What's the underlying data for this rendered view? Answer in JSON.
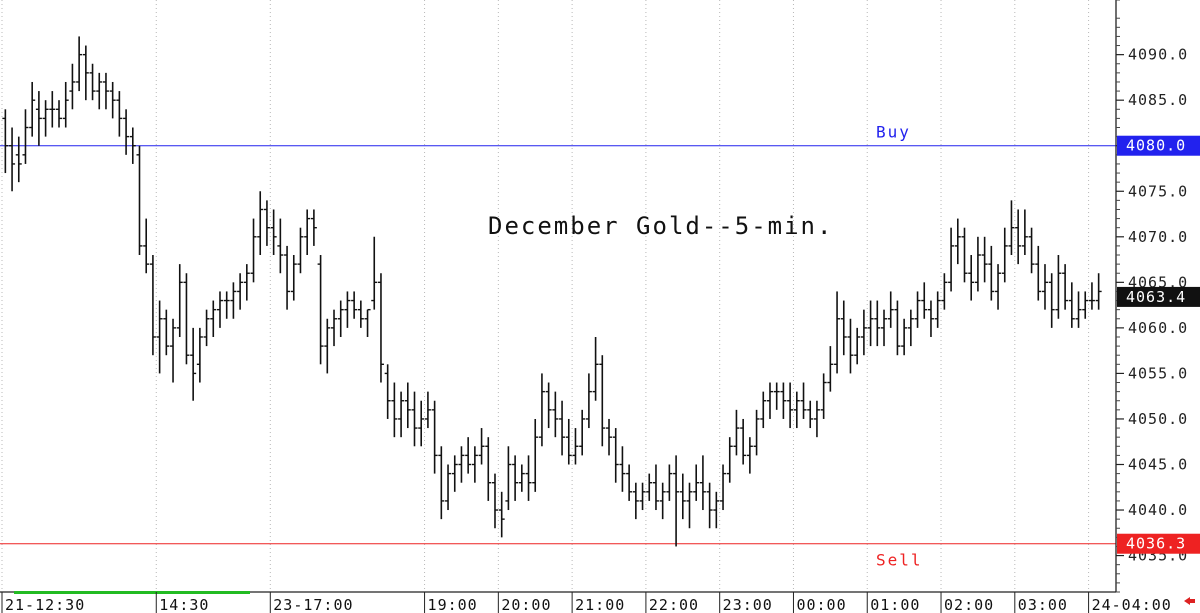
{
  "chart_data": {
    "type": "ohlc",
    "title": "December Gold--5-min.",
    "ylim": [
      4031,
      4096
    ],
    "y_ticks": [
      "4035.0",
      "4040.0",
      "4045.0",
      "4050.0",
      "4055.0",
      "4060.0",
      "4065.0",
      "4070.0",
      "4075.0",
      "4080.0",
      "4085.0",
      "4090.0"
    ],
    "x_ticks": [
      {
        "label": "21-12:30",
        "bar": 0
      },
      {
        "label": "14:30",
        "bar": 23
      },
      {
        "label": "23-17:00",
        "bar": 40
      },
      {
        "label": "19:00",
        "bar": 63
      },
      {
        "label": "20:00",
        "bar": 74
      },
      {
        "label": "21:00",
        "bar": 85
      },
      {
        "label": "22:00",
        "bar": 96
      },
      {
        "label": "23:00",
        "bar": 107
      },
      {
        "label": "00:00",
        "bar": 118
      },
      {
        "label": "01:00",
        "bar": 129
      },
      {
        "label": "02:00",
        "bar": 140
      },
      {
        "label": "03:00",
        "bar": 151
      },
      {
        "label": "24-04:00",
        "bar": 162
      }
    ],
    "levels": [
      {
        "name": "Buy",
        "value": 4080.0,
        "tag": "4080.0",
        "color": "#2222ee"
      },
      {
        "name": "Sell",
        "value": 4036.3,
        "tag": "4036.3",
        "color": "#ee2222"
      }
    ],
    "last_price": {
      "value": 4063.4,
      "tag": "4063.4",
      "color": "#111111"
    },
    "bars": [
      [
        4083,
        4084,
        4077,
        4080
      ],
      [
        4080,
        4082,
        4075,
        4078
      ],
      [
        4079,
        4081,
        4076,
        4078
      ],
      [
        4079,
        4084,
        4078,
        4082
      ],
      [
        4082,
        4087,
        4081,
        4085
      ],
      [
        4084,
        4086,
        4080,
        4083
      ],
      [
        4083,
        4085,
        4081,
        4084
      ],
      [
        4084,
        4086,
        4082,
        4084
      ],
      [
        4084,
        4085,
        4082,
        4083
      ],
      [
        4083,
        4087,
        4082,
        4085
      ],
      [
        4086,
        4089,
        4084,
        4087
      ],
      [
        4087,
        4092,
        4086,
        4090
      ],
      [
        4090,
        4091,
        4085,
        4088
      ],
      [
        4088,
        4089,
        4085,
        4086
      ],
      [
        4086,
        4088,
        4084,
        4087
      ],
      [
        4087,
        4088,
        4084,
        4086
      ],
      [
        4086,
        4087,
        4083,
        4085
      ],
      [
        4085,
        4086,
        4081,
        4083
      ],
      [
        4083,
        4084,
        4079,
        4081
      ],
      [
        4081,
        4082,
        4078,
        4080
      ],
      [
        4079,
        4080,
        4068,
        4069
      ],
      [
        4069,
        4072,
        4066,
        4067
      ],
      [
        4067,
        4068,
        4057,
        4059
      ],
      [
        4059,
        4063,
        4055,
        4061
      ],
      [
        4061,
        4062,
        4057,
        4058
      ],
      [
        4058,
        4061,
        4054,
        4060
      ],
      [
        4060,
        4067,
        4059,
        4065
      ],
      [
        4065,
        4066,
        4056,
        4057
      ],
      [
        4057,
        4060,
        4052,
        4055
      ],
      [
        4056,
        4060,
        4054,
        4059
      ],
      [
        4059,
        4062,
        4058,
        4061
      ],
      [
        4061,
        4063,
        4059,
        4062
      ],
      [
        4062,
        4064,
        4060,
        4063
      ],
      [
        4063,
        4064,
        4061,
        4063
      ],
      [
        4063,
        4065,
        4061,
        4064
      ],
      [
        4064,
        4066,
        4062,
        4065
      ],
      [
        4065,
        4067,
        4063,
        4066
      ],
      [
        4066,
        4072,
        4065,
        4070
      ],
      [
        4070,
        4075,
        4068,
        4073
      ],
      [
        4073,
        4074,
        4069,
        4071
      ],
      [
        4071,
        4073,
        4068,
        4070
      ],
      [
        4069,
        4072,
        4066,
        4068
      ],
      [
        4068,
        4069,
        4062,
        4064
      ],
      [
        4064,
        4068,
        4063,
        4067
      ],
      [
        4067,
        4071,
        4066,
        4070
      ],
      [
        4070,
        4073,
        4068,
        4072
      ],
      [
        4072,
        4073,
        4069,
        4071
      ],
      [
        4067,
        4068,
        4056,
        4058
      ],
      [
        4058,
        4061,
        4055,
        4060
      ],
      [
        4060,
        4062,
        4058,
        4061
      ],
      [
        4061,
        4063,
        4059,
        4062
      ],
      [
        4062,
        4064,
        4060,
        4063
      ],
      [
        4063,
        4064,
        4061,
        4062
      ],
      [
        4062,
        4063,
        4060,
        4061
      ],
      [
        4061,
        4062,
        4059,
        4062
      ],
      [
        4063,
        4070,
        4062,
        4065
      ],
      [
        4065,
        4066,
        4054,
        4056
      ],
      [
        4055,
        4056,
        4050,
        4052
      ],
      [
        4052,
        4054,
        4048,
        4050
      ],
      [
        4050,
        4053,
        4048,
        4052
      ],
      [
        4052,
        4054,
        4049,
        4051
      ],
      [
        4051,
        4053,
        4047,
        4049
      ],
      [
        4049,
        4052,
        4047,
        4050
      ],
      [
        4050,
        4053,
        4049,
        4051
      ],
      [
        4051,
        4052,
        4044,
        4046
      ],
      [
        4046,
        4047,
        4039,
        4041
      ],
      [
        4041,
        4045,
        4040,
        4044
      ],
      [
        4044,
        4046,
        4042,
        4045
      ],
      [
        4045,
        4047,
        4043,
        4046
      ],
      [
        4046,
        4048,
        4044,
        4045
      ],
      [
        4045,
        4047,
        4043,
        4046
      ],
      [
        4046,
        4049,
        4045,
        4047
      ],
      [
        4047,
        4048,
        4041,
        4043
      ],
      [
        4043,
        4044,
        4038,
        4040
      ],
      [
        4040,
        4042,
        4037,
        4039
      ],
      [
        4041,
        4047,
        4040,
        4045
      ],
      [
        4045,
        4046,
        4041,
        4043
      ],
      [
        4043,
        4045,
        4042,
        4044
      ],
      [
        4044,
        4046,
        4041,
        4043
      ],
      [
        4043,
        4050,
        4042,
        4048
      ],
      [
        4048,
        4055,
        4047,
        4053
      ],
      [
        4053,
        4054,
        4049,
        4051
      ],
      [
        4051,
        4053,
        4048,
        4050
      ],
      [
        4050,
        4052,
        4046,
        4048
      ],
      [
        4048,
        4050,
        4045,
        4046
      ],
      [
        4046,
        4049,
        4045,
        4047
      ],
      [
        4047,
        4051,
        4046,
        4050
      ],
      [
        4050,
        4055,
        4049,
        4053
      ],
      [
        4053,
        4059,
        4052,
        4056
      ],
      [
        4056,
        4057,
        4047,
        4049
      ],
      [
        4049,
        4050,
        4046,
        4048
      ],
      [
        4048,
        4049,
        4043,
        4045
      ],
      [
        4045,
        4047,
        4042,
        4044
      ],
      [
        4044,
        4045,
        4041,
        4042
      ],
      [
        4042,
        4043,
        4039,
        4041
      ],
      [
        4041,
        4043,
        4040,
        4042
      ],
      [
        4042,
        4044,
        4041,
        4043
      ],
      [
        4043,
        4045,
        4040,
        4041
      ],
      [
        4041,
        4043,
        4039,
        4042
      ],
      [
        4042,
        4045,
        4041,
        4044
      ],
      [
        4044,
        4046,
        4036,
        4042
      ],
      [
        4042,
        4044,
        4039,
        4041
      ],
      [
        4041,
        4043,
        4038,
        4042
      ],
      [
        4042,
        4045,
        4041,
        4043
      ],
      [
        4043,
        4046,
        4040,
        4042
      ],
      [
        4042,
        4043,
        4038,
        4040
      ],
      [
        4040,
        4042,
        4038,
        4041
      ],
      [
        4041,
        4045,
        4040,
        4044
      ],
      [
        4044,
        4048,
        4043,
        4047
      ],
      [
        4047,
        4051,
        4046,
        4049
      ],
      [
        4049,
        4050,
        4045,
        4046
      ],
      [
        4046,
        4048,
        4044,
        4047
      ],
      [
        4047,
        4051,
        4046,
        4050
      ],
      [
        4050,
        4053,
        4049,
        4052
      ],
      [
        4052,
        4054,
        4050,
        4053
      ],
      [
        4053,
        4054,
        4051,
        4053
      ],
      [
        4053,
        4054,
        4050,
        4052
      ],
      [
        4052,
        4054,
        4049,
        4051
      ],
      [
        4051,
        4053,
        4049,
        4052
      ],
      [
        4052,
        4054,
        4050,
        4051
      ],
      [
        4051,
        4052,
        4049,
        4050
      ],
      [
        4050,
        4052,
        4048,
        4051
      ],
      [
        4051,
        4055,
        4050,
        4054
      ],
      [
        4054,
        4058,
        4053,
        4056
      ],
      [
        4056,
        4064,
        4055,
        4061
      ],
      [
        4061,
        4063,
        4057,
        4059
      ],
      [
        4059,
        4061,
        4055,
        4057
      ],
      [
        4057,
        4060,
        4056,
        4059
      ],
      [
        4059,
        4062,
        4057,
        4060
      ],
      [
        4060,
        4063,
        4058,
        4061
      ],
      [
        4061,
        4063,
        4058,
        4060
      ],
      [
        4060,
        4062,
        4058,
        4061
      ],
      [
        4061,
        4064,
        4060,
        4062
      ],
      [
        4062,
        4063,
        4057,
        4058
      ],
      [
        4058,
        4061,
        4057,
        4060
      ],
      [
        4060,
        4062,
        4058,
        4061
      ],
      [
        4061,
        4064,
        4060,
        4063
      ],
      [
        4063,
        4065,
        4061,
        4062
      ],
      [
        4062,
        4063,
        4059,
        4061
      ],
      [
        4061,
        4064,
        4060,
        4063
      ],
      [
        4063,
        4066,
        4062,
        4065
      ],
      [
        4065,
        4071,
        4064,
        4069
      ],
      [
        4069,
        4072,
        4067,
        4070
      ],
      [
        4070,
        4071,
        4065,
        4066
      ],
      [
        4066,
        4068,
        4063,
        4065
      ],
      [
        4065,
        4070,
        4064,
        4068
      ],
      [
        4068,
        4070,
        4065,
        4067
      ],
      [
        4067,
        4069,
        4063,
        4064
      ],
      [
        4064,
        4067,
        4062,
        4066
      ],
      [
        4066,
        4071,
        4065,
        4069
      ],
      [
        4069,
        4074,
        4068,
        4071
      ],
      [
        4071,
        4073,
        4067,
        4069
      ],
      [
        4069,
        4073,
        4068,
        4070
      ],
      [
        4070,
        4071,
        4066,
        4067
      ],
      [
        4067,
        4069,
        4063,
        4064
      ],
      [
        4064,
        4067,
        4062,
        4065
      ],
      [
        4065,
        4066,
        4060,
        4062
      ],
      [
        4062,
        4068,
        4061,
        4066
      ],
      [
        4066,
        4067,
        4062,
        4063
      ],
      [
        4063,
        4065,
        4060,
        4061
      ],
      [
        4061,
        4064,
        4060,
        4062
      ],
      [
        4062,
        4064,
        4061,
        4063
      ],
      [
        4063,
        4065,
        4062,
        4063
      ],
      [
        4063,
        4066,
        4062,
        4064
      ]
    ]
  }
}
